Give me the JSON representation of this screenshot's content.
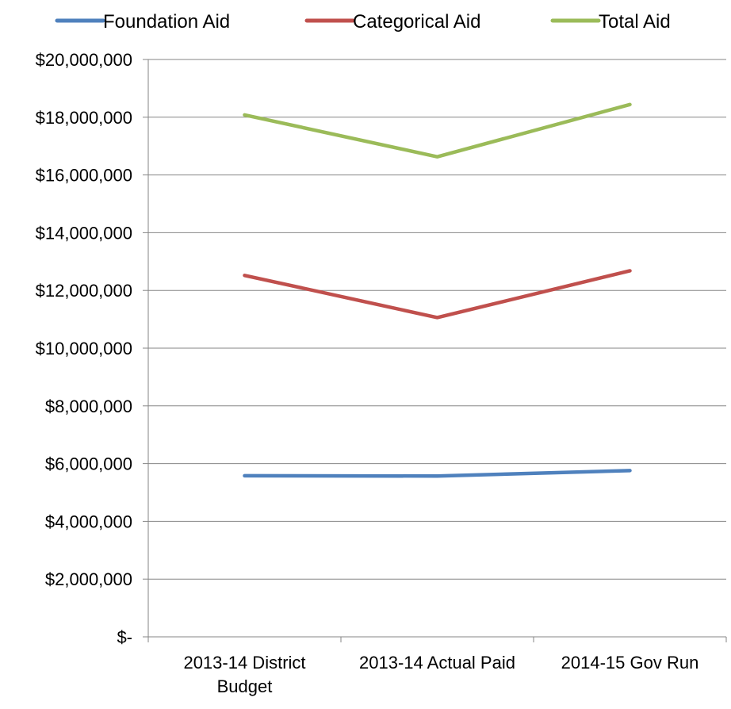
{
  "chart_data": {
    "type": "line",
    "title": "",
    "xlabel": "",
    "ylabel": "",
    "categories": [
      "2013-14 District Budget",
      "2013-14 Actual Paid",
      "2014-15 Gov Run"
    ],
    "category_lines": [
      [
        "2013-14 District",
        "Budget"
      ],
      [
        "2013-14 Actual Paid"
      ],
      [
        "2014-15 Gov Run"
      ]
    ],
    "ylim": [
      0,
      20000000
    ],
    "ytick_values": [
      0,
      2000000,
      4000000,
      6000000,
      8000000,
      10000000,
      12000000,
      14000000,
      16000000,
      18000000,
      20000000
    ],
    "ytick_labels": [
      "$-",
      "$2,000,000",
      "$4,000,000",
      "$6,000,000",
      "$8,000,000",
      "$10,000,000",
      "$12,000,000",
      "$14,000,000",
      "$16,000,000",
      "$18,000,000",
      "$20,000,000"
    ],
    "grid": "horizontal",
    "legend_position": "top",
    "series": [
      {
        "name": "Foundation Aid",
        "color": "#4F81BD",
        "values": [
          5580000,
          5570000,
          5760000
        ]
      },
      {
        "name": "Categorical Aid",
        "color": "#C0504D",
        "values": [
          12520000,
          11060000,
          12680000
        ]
      },
      {
        "name": "Total Aid",
        "color": "#9BBB59",
        "values": [
          18080000,
          16630000,
          18440000
        ]
      }
    ]
  }
}
